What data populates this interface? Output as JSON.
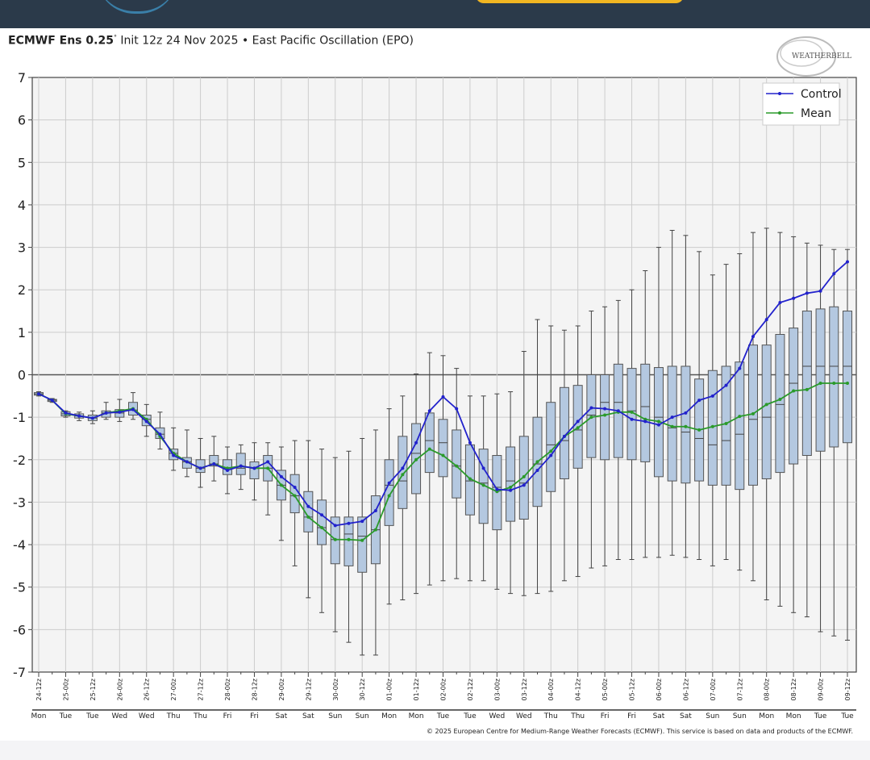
{
  "title": {
    "bold": "ECMWF Ens 0.25",
    "degree": "°",
    "rest": " Init 12z 24 Nov 2025 • East Pacific Oscillation (EPO)"
  },
  "logo": {
    "text": "WEATHERBELL"
  },
  "copyright": "© 2025 European Centre for Medium-Range Weather Forecasts (ECMWF). This service is based on data and products of the ECMWF.",
  "colors": {
    "control": "#2222cc",
    "mean": "#2a9a2a",
    "box_fill": "#b4c8e0",
    "box_edge": "#555555",
    "plot_bg": "#f4f4f4",
    "header": "#2b3a4a",
    "accent": "#f2b622"
  },
  "chart_data": {
    "type": "box-and-line",
    "title": "ECMWF Ens 0.25° Init 12z 24 Nov 2025 • East Pacific Oscillation (EPO)",
    "ylim": [
      -7,
      7
    ],
    "yticks": [
      7,
      6,
      5,
      4,
      3,
      2,
      1,
      0,
      -1,
      -2,
      -3,
      -4,
      -5,
      -6,
      -7
    ],
    "grid": true,
    "legend_position": "top-right",
    "time_step_hours": 6,
    "x_tick_labels": [
      "24-12z",
      "25-00z",
      "25-12z",
      "26-00z",
      "26-12z",
      "27-00z",
      "27-12z",
      "28-00z",
      "28-12z",
      "29-00z",
      "29-12z",
      "30-00z",
      "30-12z",
      "01-00z",
      "01-12z",
      "02-00z",
      "02-12z",
      "03-00z",
      "03-12z",
      "04-00z",
      "04-12z",
      "05-00z",
      "05-12z",
      "06-00z",
      "06-12z",
      "07-00z",
      "07-12z",
      "08-00z",
      "08-12z",
      "09-00z",
      "09-12z"
    ],
    "x_day_labels": [
      "Mon",
      "Tue",
      "Tue",
      "Wed",
      "Wed",
      "Thu",
      "Thu",
      "Fri",
      "Fri",
      "Sat",
      "Sat",
      "Sun",
      "Sun",
      "Mon",
      "Mon",
      "Tue",
      "Tue",
      "Wed",
      "Wed",
      "Thu",
      "Thu",
      "Fri",
      "Fri",
      "Sat",
      "Sat",
      "Sun",
      "Sun",
      "Mon",
      "Mon",
      "Tue",
      "Tue"
    ],
    "series": [
      {
        "name": "Control",
        "values": [
          -0.45,
          -0.6,
          -0.9,
          -0.97,
          -1.02,
          -0.9,
          -0.88,
          -0.82,
          -1.1,
          -1.4,
          -1.9,
          -2.05,
          -2.2,
          -2.1,
          -2.25,
          -2.15,
          -2.2,
          -2.05,
          -2.4,
          -2.65,
          -3.1,
          -3.3,
          -3.55,
          -3.5,
          -3.45,
          -3.2,
          -2.55,
          -2.2,
          -1.6,
          -0.85,
          -0.52,
          -0.8,
          -1.6,
          -2.2,
          -2.7,
          -2.72,
          -2.6,
          -2.25,
          -1.9,
          -1.45,
          -1.1,
          -0.78,
          -0.8,
          -0.85,
          -1.05,
          -1.1,
          -1.18,
          -1.0,
          -0.9,
          -0.6,
          -0.5,
          -0.25,
          0.15,
          0.9,
          1.3,
          1.7,
          1.8,
          1.92,
          1.97,
          2.38,
          2.66
        ]
      },
      {
        "name": "Mean",
        "values": [
          -0.45,
          -0.6,
          -0.92,
          -0.97,
          -1.02,
          -0.9,
          -0.85,
          -0.8,
          -1.05,
          -1.45,
          -1.85,
          -2.05,
          -2.2,
          -2.1,
          -2.2,
          -2.15,
          -2.2,
          -2.2,
          -2.6,
          -2.85,
          -3.35,
          -3.6,
          -3.88,
          -3.88,
          -3.9,
          -3.65,
          -2.85,
          -2.35,
          -2.0,
          -1.75,
          -1.9,
          -2.15,
          -2.45,
          -2.6,
          -2.75,
          -2.65,
          -2.4,
          -2.05,
          -1.8,
          -1.45,
          -1.25,
          -1.0,
          -0.95,
          -0.88,
          -0.88,
          -1.05,
          -1.1,
          -1.22,
          -1.22,
          -1.3,
          -1.22,
          -1.15,
          -0.98,
          -0.92,
          -0.7,
          -0.58,
          -0.38,
          -0.35,
          -0.2,
          -0.2,
          -0.2
        ]
      }
    ],
    "boxes": [
      [
        -0.5,
        -0.48,
        -0.45,
        -0.42,
        -0.4
      ],
      [
        -0.65,
        -0.63,
        -0.6,
        -0.58,
        -0.56
      ],
      [
        -1.0,
        -0.97,
        -0.92,
        -0.87,
        -0.85
      ],
      [
        -1.08,
        -1.02,
        -0.97,
        -0.92,
        -0.88
      ],
      [
        -1.15,
        -1.08,
        -1.02,
        -0.95,
        -0.85
      ],
      [
        -1.05,
        -1.0,
        -0.9,
        -0.85,
        -0.65
      ],
      [
        -1.1,
        -1.0,
        -0.9,
        -0.82,
        -0.58
      ],
      [
        -1.05,
        -0.95,
        -0.83,
        -0.65,
        -0.42
      ],
      [
        -1.45,
        -1.2,
        -1.05,
        -0.95,
        -0.7
      ],
      [
        -1.75,
        -1.5,
        -1.4,
        -1.25,
        -0.88
      ],
      [
        -2.25,
        -2.0,
        -1.85,
        -1.75,
        -1.25
      ],
      [
        -2.4,
        -2.2,
        -2.05,
        -1.95,
        -1.3
      ],
      [
        -2.65,
        -2.3,
        -2.2,
        -2.0,
        -1.5
      ],
      [
        -2.5,
        -2.15,
        -2.1,
        -1.9,
        -1.45
      ],
      [
        -2.8,
        -2.35,
        -2.2,
        -2.0,
        -1.7
      ],
      [
        -2.7,
        -2.35,
        -2.2,
        -1.85,
        -1.65
      ],
      [
        -2.95,
        -2.45,
        -2.2,
        -2.05,
        -1.6
      ],
      [
        -3.3,
        -2.5,
        -2.2,
        -1.9,
        -1.6
      ],
      [
        -3.9,
        -2.95,
        -2.6,
        -2.25,
        -1.7
      ],
      [
        -4.5,
        -3.25,
        -2.85,
        -2.35,
        -1.55
      ],
      [
        -5.25,
        -3.7,
        -3.35,
        -2.75,
        -1.55
      ],
      [
        -5.6,
        -4.0,
        -3.6,
        -2.95,
        -1.75
      ],
      [
        -6.05,
        -4.45,
        -3.88,
        -3.35,
        -1.95
      ],
      [
        -6.3,
        -4.5,
        -3.75,
        -3.35,
        -1.8
      ],
      [
        -6.6,
        -4.65,
        -3.8,
        -3.35,
        -1.5
      ],
      [
        -6.6,
        -4.45,
        -3.65,
        -2.85,
        -1.3
      ],
      [
        -5.4,
        -3.55,
        -2.6,
        -2.0,
        -0.8
      ],
      [
        -5.3,
        -3.15,
        -2.5,
        -1.45,
        -0.5
      ],
      [
        -5.15,
        -2.8,
        -1.85,
        -1.15,
        0.02
      ],
      [
        -4.95,
        -2.3,
        -1.55,
        -0.9,
        0.52
      ],
      [
        -4.85,
        -2.4,
        -1.6,
        -1.05,
        0.45
      ],
      [
        -4.8,
        -2.9,
        -2.15,
        -1.3,
        0.15
      ],
      [
        -4.85,
        -3.3,
        -2.5,
        -1.65,
        -0.5
      ],
      [
        -4.85,
        -3.5,
        -2.55,
        -1.75,
        -0.5
      ],
      [
        -5.05,
        -3.65,
        -2.65,
        -1.9,
        -0.45
      ],
      [
        -5.15,
        -3.45,
        -2.5,
        -1.7,
        -0.4
      ],
      [
        -5.2,
        -3.4,
        -2.55,
        -1.45,
        0.55
      ],
      [
        -5.15,
        -3.1,
        -2.1,
        -1.0,
        1.3
      ],
      [
        -5.1,
        -2.75,
        -1.65,
        -0.65,
        1.15
      ],
      [
        -4.85,
        -2.45,
        -1.55,
        -0.3,
        1.05
      ],
      [
        -4.75,
        -2.2,
        -1.3,
        -0.25,
        1.15
      ],
      [
        -4.55,
        -1.95,
        -0.95,
        0.0,
        1.5
      ],
      [
        -4.5,
        -2.0,
        -0.65,
        0.0,
        1.6
      ],
      [
        -4.35,
        -1.95,
        -0.65,
        0.25,
        1.75
      ],
      [
        -4.35,
        -2.0,
        -0.85,
        0.15,
        2.0
      ],
      [
        -4.3,
        -2.05,
        -0.75,
        0.25,
        2.45
      ],
      [
        -4.3,
        -2.4,
        -1.0,
        0.17,
        3.0
      ],
      [
        -4.25,
        -2.5,
        -1.25,
        0.2,
        3.4
      ],
      [
        -4.3,
        -2.55,
        -1.35,
        0.2,
        3.28
      ],
      [
        -4.35,
        -2.5,
        -1.5,
        -0.1,
        2.9
      ],
      [
        -4.5,
        -2.6,
        -1.65,
        0.1,
        2.35
      ],
      [
        -4.35,
        -2.6,
        -1.55,
        0.2,
        2.6
      ],
      [
        -4.6,
        -2.7,
        -1.4,
        0.3,
        2.85
      ],
      [
        -4.85,
        -2.6,
        -1.05,
        0.7,
        3.35
      ],
      [
        -5.3,
        -2.45,
        -1.0,
        0.7,
        3.45
      ],
      [
        -5.45,
        -2.3,
        -0.7,
        0.95,
        3.35
      ],
      [
        -5.6,
        -2.1,
        -0.2,
        1.1,
        3.25
      ],
      [
        -5.7,
        -1.9,
        0.2,
        1.5,
        3.1
      ],
      [
        -6.05,
        -1.8,
        0.2,
        1.55,
        3.05
      ],
      [
        -6.15,
        -1.7,
        0.2,
        1.6,
        2.95
      ],
      [
        -6.25,
        -1.6,
        0.2,
        1.5,
        2.95
      ]
    ],
    "box_fields": [
      "min",
      "q1",
      "median",
      "q3",
      "max"
    ]
  }
}
